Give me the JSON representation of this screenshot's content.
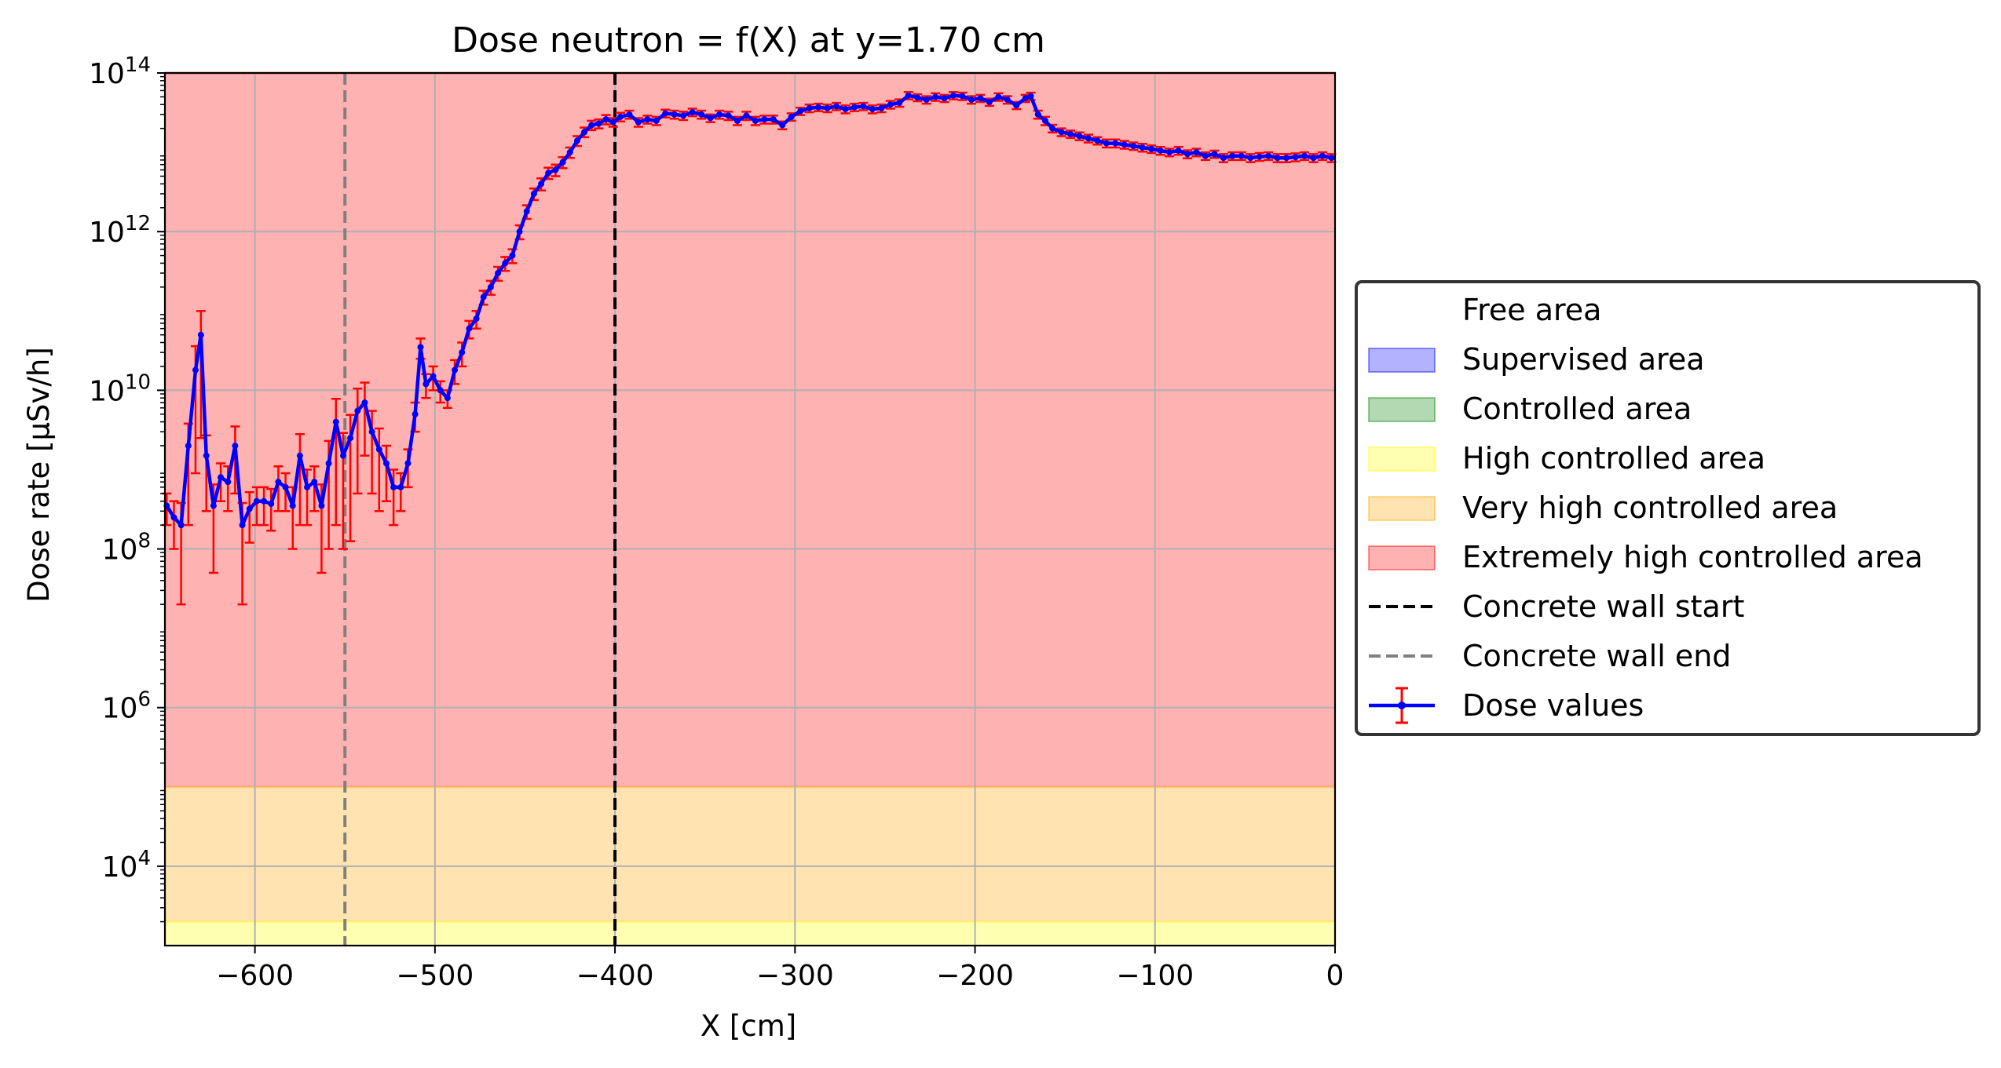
{
  "chart_data": {
    "type": "line",
    "title": "Dose neutron = f(X) at y=1.70 cm",
    "xlabel": "X [cm]",
    "ylabel": "Dose rate [µSv/h]",
    "xlim": [
      -650,
      0
    ],
    "ylim": [
      1000,
      100000000000000.0
    ],
    "yscale": "log",
    "grid": true,
    "legend_position": "center-right outside",
    "x_ticks": [
      -600,
      -500,
      -400,
      -300,
      -200,
      -100,
      0
    ],
    "x_tick_labels": [
      "−600",
      "−500",
      "−400",
      "−300",
      "−200",
      "−100",
      "0"
    ],
    "y_ticks": [
      {
        "exp": 4,
        "base": "10",
        "power": "4"
      },
      {
        "exp": 6,
        "base": "10",
        "power": "6"
      },
      {
        "exp": 8,
        "base": "10",
        "power": "8"
      },
      {
        "exp": 10,
        "base": "10",
        "power": "10"
      },
      {
        "exp": 12,
        "base": "10",
        "power": "12"
      },
      {
        "exp": 14,
        "base": "10",
        "power": "14"
      }
    ],
    "zones": [
      {
        "name": "Free area",
        "from": null,
        "to": null,
        "color": "#ffffff",
        "edge": "#ffffff"
      },
      {
        "name": "Supervised area",
        "from": null,
        "to": null,
        "color": "#0000ff",
        "edge": "#0000ff"
      },
      {
        "name": "Controlled area",
        "from": null,
        "to": null,
        "color": "#008000",
        "edge": "#008000"
      },
      {
        "name": "High controlled area",
        "from": 1000,
        "to": 2000,
        "color": "#ffff00",
        "edge": "#ffff00"
      },
      {
        "name": "Very high controlled area",
        "from": 2000,
        "to": 100000,
        "color": "#ffa500",
        "edge": "#ffa500"
      },
      {
        "name": "Extremely high controlled area",
        "from": 100000,
        "to": 100000000000000.0,
        "color": "#ff0000",
        "edge": "#ff0000"
      }
    ],
    "vlines": [
      {
        "name": "Concrete wall start",
        "x": -400,
        "color": "#000000"
      },
      {
        "name": "Concrete wall end",
        "x": -550,
        "color": "#808080"
      }
    ],
    "series": [
      {
        "name": "Dose values",
        "color": "#0000ff",
        "error_color": "#ff0000",
        "x": [
          -649,
          -645,
          -641,
          -637,
          -633,
          -630,
          -627,
          -623,
          -619,
          -615,
          -611,
          -607,
          -603,
          -599,
          -595,
          -591,
          -587,
          -583,
          -579,
          -575,
          -571,
          -567,
          -563,
          -559,
          -555,
          -551,
          -547,
          -543,
          -539,
          -535,
          -531,
          -527,
          -523,
          -519,
          -515,
          -511,
          -508,
          -505,
          -501,
          -497,
          -493,
          -489,
          -485,
          -481,
          -477,
          -473,
          -469,
          -465,
          -461,
          -457,
          -453,
          -449,
          -445,
          -441,
          -437,
          -433,
          -429,
          -425,
          -421,
          -417,
          -413,
          -409,
          -405,
          -401,
          -397,
          -392,
          -387,
          -382,
          -377,
          -372,
          -367,
          -362,
          -357,
          -352,
          -347,
          -342,
          -337,
          -332,
          -327,
          -322,
          -317,
          -312,
          -307,
          -302,
          -297,
          -292,
          -287,
          -282,
          -277,
          -272,
          -267,
          -262,
          -257,
          -252,
          -247,
          -242,
          -237,
          -232,
          -227,
          -222,
          -217,
          -212,
          -207,
          -202,
          -197,
          -192,
          -187,
          -182,
          -177,
          -172,
          -169,
          -165,
          -161,
          -157,
          -152,
          -147,
          -142,
          -137,
          -132,
          -127,
          -122,
          -117,
          -112,
          -107,
          -102,
          -97,
          -92,
          -87,
          -82,
          -77,
          -72,
          -67,
          -62,
          -57,
          -52,
          -47,
          -42,
          -37,
          -32,
          -27,
          -22,
          -17,
          -12,
          -7,
          -2
        ],
        "values": [
          350000000.0,
          250000000.0,
          200000000.0,
          2000000000.0,
          18000000000.0,
          50000000000.0,
          1500000000.0,
          350000000.0,
          800000000.0,
          700000000.0,
          2000000000.0,
          200000000.0,
          320000000.0,
          400000000.0,
          400000000.0,
          370000000.0,
          700000000.0,
          600000000.0,
          350000000.0,
          1500000000.0,
          600000000.0,
          700000000.0,
          350000000.0,
          1200000000.0,
          4000000000.0,
          1500000000.0,
          2500000000.0,
          5500000000.0,
          7000000000.0,
          3000000000.0,
          1800000000.0,
          1200000000.0,
          600000000.0,
          600000000.0,
          1200000000.0,
          5000000000.0,
          35000000000.0,
          12000000000.0,
          15000000000.0,
          10000000000.0,
          8000000000.0,
          18000000000.0,
          30000000000.0,
          60000000000.0,
          80000000000.0,
          150000000000.0,
          200000000000.0,
          300000000000.0,
          400000000000.0,
          500000000000.0,
          1000000000000.0,
          1800000000000.0,
          3000000000000.0,
          4000000000000.0,
          5500000000000.0,
          6000000000000.0,
          7500000000000.0,
          10000000000000.0,
          14000000000000.0,
          18000000000000.0,
          22000000000000.0,
          23000000000000.0,
          26000000000000.0,
          24000000000000.0,
          28000000000000.0,
          30000000000000.0,
          24000000000000.0,
          26000000000000.0,
          25000000000000.0,
          31000000000000.0,
          30000000000000.0,
          29000000000000.0,
          32000000000000.0,
          30000000000000.0,
          27000000000000.0,
          30000000000000.0,
          29000000000000.0,
          25000000000000.0,
          29000000000000.0,
          25000000000000.0,
          26000000000000.0,
          26000000000000.0,
          22000000000000.0,
          28000000000000.0,
          33000000000000.0,
          36000000000000.0,
          37000000000000.0,
          36000000000000.0,
          38000000000000.0,
          35000000000000.0,
          37000000000000.0,
          38000000000000.0,
          35000000000000.0,
          36000000000000.0,
          40000000000000.0,
          42000000000000.0,
          52000000000000.0,
          49000000000000.0,
          46000000000000.0,
          50000000000000.0,
          48000000000000.0,
          52000000000000.0,
          51000000000000.0,
          46000000000000.0,
          48000000000000.0,
          43000000000000.0,
          50000000000000.0,
          46000000000000.0,
          39000000000000.0,
          48000000000000.0,
          51000000000000.0,
          30000000000000.0,
          25000000000000.0,
          20000000000000.0,
          18000000000000.0,
          17000000000000.0,
          16000000000000.0,
          15000000000000.0,
          14000000000000.0,
          13000000000000.0,
          13000000000000.0,
          12500000000000.0,
          12000000000000.0,
          11500000000000.0,
          11000000000000.0,
          10500000000000.0,
          10000000000000.0,
          10500000000000.0,
          9500000000000.0,
          10000000000000.0,
          9000000000000.0,
          9500000000000.0,
          8500000000000.0,
          9000000000000.0,
          9000000000000.0,
          8500000000000.0,
          8800000000000.0,
          9000000000000.0,
          8500000000000.0,
          8500000000000.0,
          8700000000000.0,
          9000000000000.0,
          8500000000000.0,
          9000000000000.0,
          8500000000000.0
        ],
        "errors": [
          150000000.0,
          150000000.0,
          180000000.0,
          1800000000.0,
          18000000000.0,
          50000000000.0,
          1200000000.0,
          300000000.0,
          400000000.0,
          400000000.0,
          1500000000.0,
          180000000.0,
          200000000.0,
          200000000.0,
          200000000.0,
          200000000.0,
          400000000.0,
          300000000.0,
          250000000.0,
          1300000000.0,
          400000000.0,
          400000000.0,
          300000000.0,
          1100000000.0,
          3800000000.0,
          1400000000.0,
          2400000000.0,
          5000000000.0,
          5500000000.0,
          2500000000.0,
          1500000000.0,
          800000000.0,
          400000000.0,
          300000000.0,
          600000000.0,
          2000000000.0,
          10000000000.0,
          4000000000.0,
          5000000000.0,
          3000000000.0,
          2000000000.0,
          6000000000.0,
          10000000000.0,
          15000000000.0,
          20000000000.0,
          30000000000.0,
          40000000000.0,
          60000000000.0,
          80000000000.0,
          100000000000.0,
          200000000000.0,
          350000000000.0,
          500000000000.0,
          700000000000.0,
          900000000000.0,
          1000000000000.0,
          1200000000000.0,
          1500000000000.0,
          2000000000000.0,
          2500000000000.0,
          3000000000000.0,
          3000000000000.0,
          3500000000000.0,
          3000000000000.0,
          3500000000000.0,
          3500000000000.0,
          3000000000000.0,
          3000000000000.0,
          3000000000000.0,
          3500000000000.0,
          3500000000000.0,
          3500000000000.0,
          3500000000000.0,
          3500000000000.0,
          3000000000000.0,
          3500000000000.0,
          3500000000000.0,
          3000000000000.0,
          3500000000000.0,
          3000000000000.0,
          3000000000000.0,
          3000000000000.0,
          2500000000000.0,
          3000000000000.0,
          3500000000000.0,
          4000000000000.0,
          4000000000000.0,
          4000000000000.0,
          4000000000000.0,
          4000000000000.0,
          4000000000000.0,
          4000000000000.0,
          4000000000000.0,
          4000000000000.0,
          4500000000000.0,
          4500000000000.0,
          5500000000000.0,
          5000000000000.0,
          5000000000000.0,
          5500000000000.0,
          5000000000000.0,
          5500000000000.0,
          5500000000000.0,
          5000000000000.0,
          5000000000000.0,
          4500000000000.0,
          5500000000000.0,
          5000000000000.0,
          4000000000000.0,
          5000000000000.0,
          5500000000000.0,
          3500000000000.0,
          3000000000000.0,
          2200000000000.0,
          2000000000000.0,
          1800000000000.0,
          1800000000000.0,
          1700000000000.0,
          1500000000000.0,
          1500000000000.0,
          1500000000000.0,
          1400000000000.0,
          1300000000000.0,
          1300000000000.0,
          1200000000000.0,
          1200000000000.0,
          1100000000000.0,
          1200000000000.0,
          1100000000000.0,
          1100000000000.0,
          1000000000000.0,
          1000000000000.0,
          1000000000000.0,
          1000000000000.0,
          1000000000000.0,
          1000000000000.0,
          1000000000000.0,
          1000000000000.0,
          1000000000000.0,
          1000000000000.0,
          1000000000000.0,
          1000000000000.0,
          1000000000000.0,
          1000000000000.0,
          1000000000000.0
        ]
      }
    ]
  }
}
